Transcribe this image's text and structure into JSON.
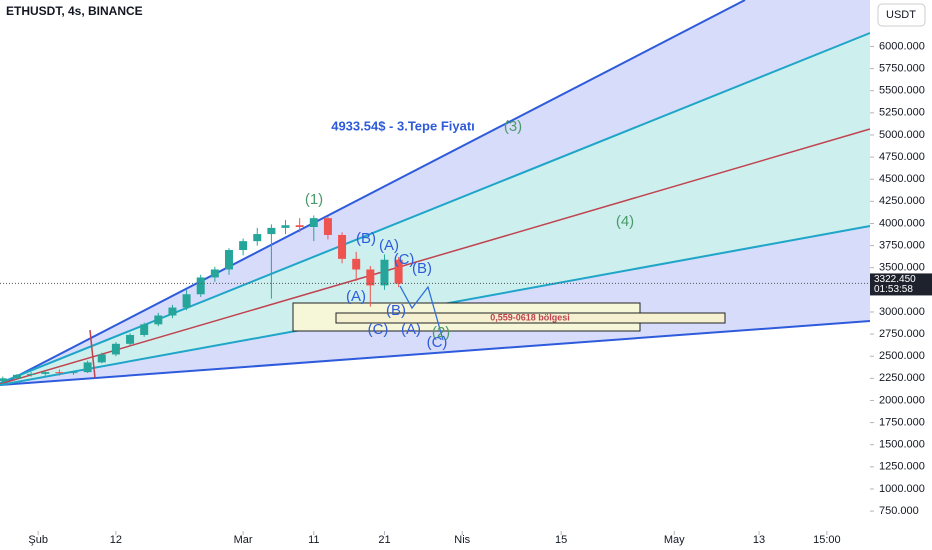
{
  "chart_data": {
    "type": "candlestick",
    "title": "ETHUSDT, 4s, BINANCE",
    "currency": "USDT",
    "x": [
      -5,
      -3,
      -1,
      1,
      3,
      5,
      7,
      9,
      11,
      13,
      15,
      17,
      19,
      21,
      23,
      25,
      27,
      29,
      31,
      33,
      35,
      37,
      39,
      41,
      43,
      45,
      47,
      49,
      51
    ],
    "open": [
      2220,
      2250,
      2290,
      2300,
      2320,
      2310,
      2320,
      2430,
      2520,
      2640,
      2740,
      2860,
      2960,
      3050,
      3200,
      3390,
      3480,
      3700,
      3800,
      3880,
      3950,
      3980,
      3960,
      4060,
      3870,
      3600,
      3480,
      3300,
      3590
    ],
    "high": [
      2270,
      2300,
      2320,
      2340,
      2350,
      2330,
      2450,
      2540,
      2660,
      2760,
      2880,
      2990,
      3080,
      3250,
      3420,
      3510,
      3720,
      3830,
      3950,
      3990,
      4040,
      4060,
      4090,
      4080,
      3900,
      3680,
      3520,
      3650,
      3620
    ],
    "low": [
      2200,
      2240,
      2270,
      2280,
      2280,
      2290,
      2310,
      2420,
      2500,
      2620,
      2720,
      2840,
      2930,
      3020,
      3170,
      3340,
      3420,
      3640,
      3750,
      3150,
      3880,
      3900,
      3800,
      3820,
      3550,
      3350,
      3060,
      3250,
      3280
    ],
    "close": [
      2250,
      2290,
      2300,
      2320,
      2310,
      2320,
      2430,
      2520,
      2640,
      2740,
      2860,
      2960,
      3050,
      3200,
      3390,
      3480,
      3700,
      3800,
      3880,
      3950,
      3980,
      3960,
      4060,
      3870,
      3600,
      3480,
      3300,
      3590,
      3320
    ],
    "up_color": "#26a69a",
    "down_color": "#ef5350",
    "xlim": [
      -5.4,
      117.7
    ],
    "xticks": [
      {
        "value": 0,
        "label": "Şub"
      },
      {
        "value": 11,
        "label": "12"
      },
      {
        "value": 29,
        "label": "Mar"
      },
      {
        "value": 39,
        "label": "11"
      },
      {
        "value": 49,
        "label": "21"
      },
      {
        "value": 60,
        "label": "Nis"
      },
      {
        "value": 74,
        "label": "15"
      },
      {
        "value": 90,
        "label": "May"
      },
      {
        "value": 102,
        "label": "13"
      },
      {
        "value": 111.6,
        "label": "15:00"
      }
    ],
    "ylim": [
      525,
      6525
    ],
    "yticks": [
      {
        "value": 750,
        "label": "750.000"
      },
      {
        "value": 1000,
        "label": "1000.000"
      },
      {
        "value": 1250,
        "label": "1250.000"
      },
      {
        "value": 1500,
        "label": "1500.000"
      },
      {
        "value": 1750,
        "label": "1750.000"
      },
      {
        "value": 2000,
        "label": "2000.000"
      },
      {
        "value": 2250,
        "label": "2250.000"
      },
      {
        "value": 2500,
        "label": "2500.000"
      },
      {
        "value": 2750,
        "label": "2750.000"
      },
      {
        "value": 3000,
        "label": "3000.000"
      },
      {
        "value": 3250,
        "label": "3250.000"
      },
      {
        "value": 3500,
        "label": "3500.000"
      },
      {
        "value": 3750,
        "label": "3750.000"
      },
      {
        "value": 4000,
        "label": "4000.000"
      },
      {
        "value": 4250,
        "label": "4250.000"
      },
      {
        "value": 4500,
        "label": "4500.000"
      },
      {
        "value": 4750,
        "label": "4750.000"
      },
      {
        "value": 5000,
        "label": "5000.000"
      },
      {
        "value": 5250,
        "label": "5250.000"
      },
      {
        "value": 5500,
        "label": "5500.000"
      },
      {
        "value": 5750,
        "label": "5750.000"
      },
      {
        "value": 6000,
        "label": "6000.000"
      }
    ],
    "last_price": {
      "value": 3322.45,
      "label": "3322.450"
    },
    "countdown": "01:53:58",
    "target_note": "4933.54$  - 3.Tepe Fiyatı",
    "zone_label": "0,559-0618 bölgesi",
    "annotations": [
      "(1)",
      "(B)",
      "(A)",
      "(C)",
      "(B)",
      "(A)",
      "(B)",
      "(C)",
      "(A)",
      "(2)",
      "(C)",
      "(3)",
      "(4)"
    ]
  }
}
